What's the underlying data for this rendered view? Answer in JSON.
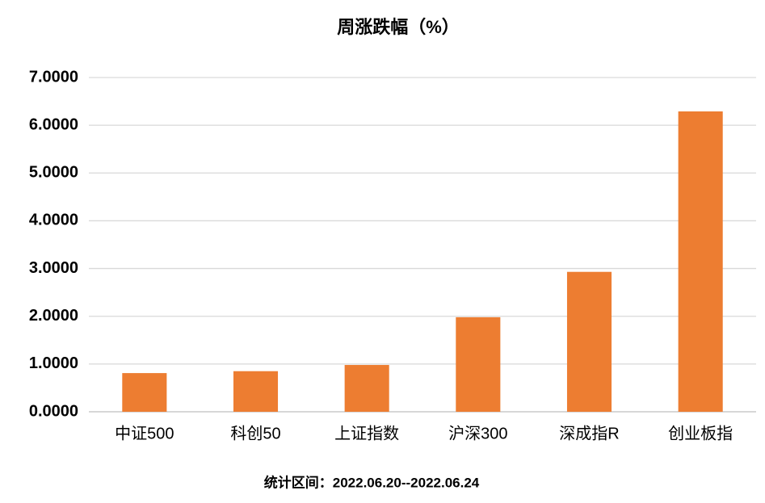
{
  "chart_data": {
    "type": "bar",
    "title": "周涨跌幅（%）",
    "categories": [
      "中证500",
      "科创50",
      "上证指数",
      "沪深300",
      "深成指R",
      "创业板指"
    ],
    "values": [
      0.81,
      0.85,
      0.98,
      1.98,
      2.93,
      6.29
    ],
    "color": "#ed7d31",
    "ylim": [
      0,
      7
    ],
    "yticks": [
      {
        "value": 0,
        "label": "0.0000"
      },
      {
        "value": 1,
        "label": "1.0000"
      },
      {
        "value": 2,
        "label": "2.0000"
      },
      {
        "value": 3,
        "label": "3.0000"
      },
      {
        "value": 4,
        "label": "4.0000"
      },
      {
        "value": 5,
        "label": "5.0000"
      },
      {
        "value": 6,
        "label": "6.0000"
      },
      {
        "value": 7,
        "label": "7.0000"
      }
    ],
    "grid": true,
    "note": "统计区间：2022.06.20--2022.06.24"
  }
}
